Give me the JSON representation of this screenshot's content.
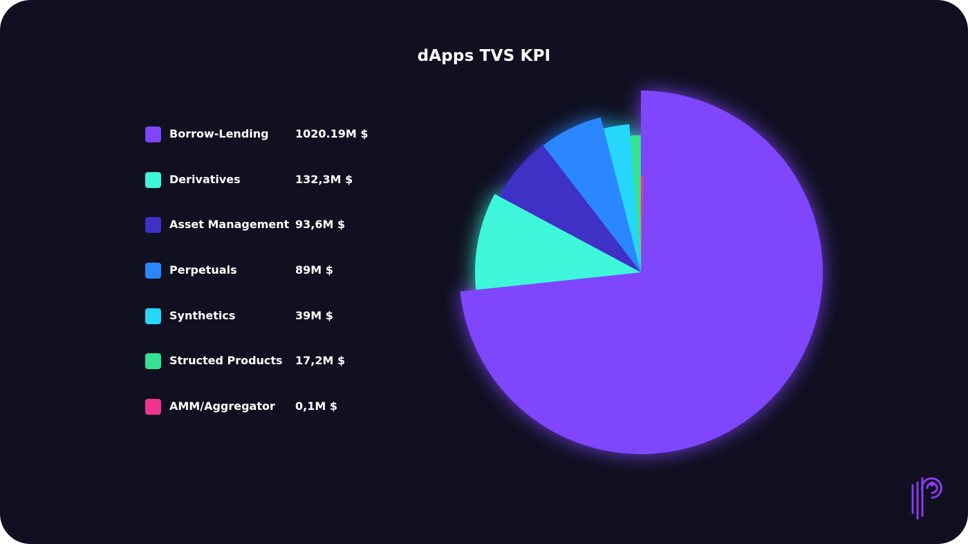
{
  "chart_data": {
    "type": "pie",
    "title": "dApps TVS KPI",
    "series": [
      {
        "name": "Borrow-Lending",
        "value": 1020.19,
        "label": "1020.19M $",
        "color": "#7f46fc"
      },
      {
        "name": "Derivatives",
        "value": 132.3,
        "label": "132,3M $",
        "color": "#3ef7da"
      },
      {
        "name": "Asset Management",
        "value": 93.6,
        "label": "93,6M $",
        "color": "#3f31c5"
      },
      {
        "name": "Perpetuals",
        "value": 89,
        "label": "89M $",
        "color": "#2a87ff"
      },
      {
        "name": "Synthetics",
        "value": 39,
        "label": "39M $",
        "color": "#26d6fb"
      },
      {
        "name": "Structed Products",
        "value": 17.2,
        "label": "17,2M $",
        "color": "#33e391"
      },
      {
        "name": "AMM/Aggregator",
        "value": 0.1,
        "label": "0,1M $",
        "color": "#f0338f"
      }
    ],
    "legend": "left",
    "start_angle": "12 o'clock",
    "direction": "clockwise",
    "variable_radius": true
  },
  "logo": {
    "icon": "brand-p-logo-icon",
    "color": "#8a3cf0"
  },
  "background": "#101020"
}
